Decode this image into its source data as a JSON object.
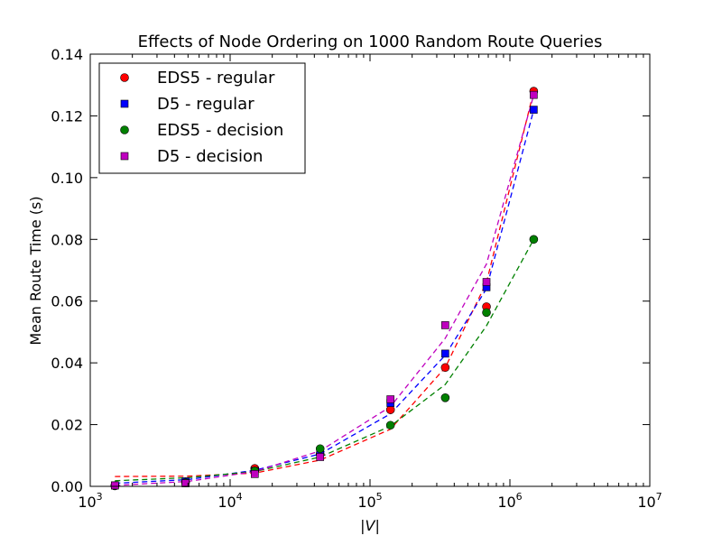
{
  "chart_data": {
    "type": "scatter",
    "title": "Effects of Node Ordering on 1000 Random Route Queries",
    "xlabel": "|V|",
    "ylabel": "Mean Route Time (s)",
    "xscale": "log",
    "xlim": [
      1000,
      10000000
    ],
    "ylim": [
      0,
      0.14
    ],
    "grid": false,
    "legend_position": "top-left",
    "x_ticks": [
      {
        "value": 1000,
        "base": "10",
        "exp": "3"
      },
      {
        "value": 10000,
        "base": "10",
        "exp": "4"
      },
      {
        "value": 100000,
        "base": "10",
        "exp": "5"
      },
      {
        "value": 1000000,
        "base": "10",
        "exp": "6"
      },
      {
        "value": 10000000,
        "base": "10",
        "exp": "7"
      }
    ],
    "y_ticks": [
      {
        "value": 0.0,
        "label": "0.00"
      },
      {
        "value": 0.02,
        "label": "0.02"
      },
      {
        "value": 0.04,
        "label": "0.04"
      },
      {
        "value": 0.06,
        "label": "0.06"
      },
      {
        "value": 0.08,
        "label": "0.08"
      },
      {
        "value": 0.1,
        "label": "0.10"
      },
      {
        "value": 0.12,
        "label": "0.12"
      },
      {
        "value": 0.14,
        "label": "0.14"
      }
    ],
    "x": [
      1500,
      4800,
      15000,
      44000,
      140000,
      345000,
      680000,
      1480000
    ],
    "series": [
      {
        "name": "EDS5 - regular",
        "marker": "circle",
        "color": "#ff0000",
        "values": [
          0.0002,
          0.0015,
          0.0058,
          0.0105,
          0.0248,
          0.0385,
          0.0582,
          0.128
        ],
        "fit_line": [
          {
            "x": 1500,
            "y": 0.0032
          },
          {
            "x": 5000,
            "y": 0.0033
          },
          {
            "x": 15000,
            "y": 0.0043
          },
          {
            "x": 44000,
            "y": 0.0085
          },
          {
            "x": 140000,
            "y": 0.0185
          },
          {
            "x": 345000,
            "y": 0.0385
          },
          {
            "x": 680000,
            "y": 0.066
          },
          {
            "x": 1480000,
            "y": 0.128
          }
        ]
      },
      {
        "name": "D5 - regular",
        "marker": "square",
        "color": "#0000ff",
        "values": [
          0.0003,
          0.0016,
          0.005,
          0.011,
          0.027,
          0.043,
          0.0645,
          0.122
        ],
        "fit_line": [
          {
            "x": 1500,
            "y": 0.001
          },
          {
            "x": 5000,
            "y": 0.0022
          },
          {
            "x": 15000,
            "y": 0.0052
          },
          {
            "x": 44000,
            "y": 0.0105
          },
          {
            "x": 140000,
            "y": 0.0235
          },
          {
            "x": 345000,
            "y": 0.0425
          },
          {
            "x": 680000,
            "y": 0.064
          },
          {
            "x": 1480000,
            "y": 0.122
          }
        ]
      },
      {
        "name": "EDS5 - decision",
        "marker": "circle",
        "color": "#008000",
        "values": [
          0.0002,
          0.0012,
          0.005,
          0.0122,
          0.0198,
          0.0287,
          0.0563,
          0.08
        ],
        "fit_line": [
          {
            "x": 1500,
            "y": 0.0018
          },
          {
            "x": 5000,
            "y": 0.0028
          },
          {
            "x": 15000,
            "y": 0.0048
          },
          {
            "x": 44000,
            "y": 0.0095
          },
          {
            "x": 140000,
            "y": 0.0195
          },
          {
            "x": 345000,
            "y": 0.033
          },
          {
            "x": 680000,
            "y": 0.052
          },
          {
            "x": 1480000,
            "y": 0.08
          }
        ]
      },
      {
        "name": "D5 - decision",
        "marker": "square",
        "color": "#bf00bf",
        "values": [
          0.0003,
          0.001,
          0.004,
          0.0095,
          0.0282,
          0.0522,
          0.0662,
          0.1268
        ],
        "fit_line": [
          {
            "x": 1500,
            "y": 0.0003
          },
          {
            "x": 5000,
            "y": 0.0016
          },
          {
            "x": 15000,
            "y": 0.0048
          },
          {
            "x": 44000,
            "y": 0.0115
          },
          {
            "x": 140000,
            "y": 0.0258
          },
          {
            "x": 345000,
            "y": 0.048
          },
          {
            "x": 680000,
            "y": 0.072
          },
          {
            "x": 1480000,
            "y": 0.1268
          }
        ]
      }
    ]
  }
}
